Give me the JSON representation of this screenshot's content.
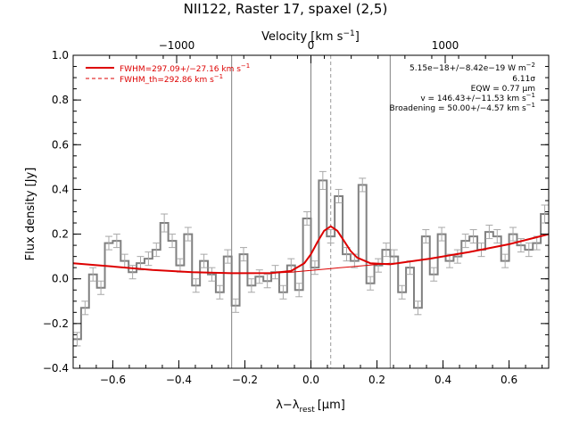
{
  "chart_data": {
    "type": "line",
    "title": "NII122, Raster 17, spaxel (2,5)",
    "xlabel": "λ−λ",
    "xlabel_sub": "rest",
    "xlabel_unit": "[μm]",
    "ylabel": "Flux density [Jy]",
    "top_axis_label": "Velocity [km s",
    "top_axis_sup": "−1",
    "top_axis_close": "]",
    "xlim": [
      -0.72,
      0.72
    ],
    "ylim": [
      -0.4,
      1.0
    ],
    "x_ticks": [
      -0.6,
      -0.4,
      -0.2,
      0.0,
      0.2,
      0.4,
      0.6
    ],
    "x_tick_labels": [
      "−0.6",
      "−0.4",
      "−0.2",
      "0.0",
      "0.2",
      "0.4",
      "0.6"
    ],
    "y_ticks": [
      -0.4,
      -0.2,
      0.0,
      0.2,
      0.4,
      0.6,
      0.8,
      1.0
    ],
    "y_tick_labels": [
      "−0.4",
      "−0.2",
      "0.0",
      "0.2",
      "0.4",
      "0.6",
      "0.8",
      "1.0"
    ],
    "top_ticks_velocity": [
      -1000,
      0,
      1000
    ],
    "top_tick_labels": [
      "−1000",
      "0",
      "1000"
    ],
    "line_rest_um": 121.9,
    "vertical_lines": {
      "solid": [
        -0.24,
        0.0,
        0.24
      ],
      "dashed": [
        0.06
      ]
    },
    "legend": [
      {
        "label": "FWHM=297.09+/−27.16 km s",
        "sup": "−1",
        "style": "solid",
        "color": "#dd0000"
      },
      {
        "label": "FWHM_th=292.86 km s",
        "sup": "−1",
        "style": "dashed",
        "color": "#dd0000"
      }
    ],
    "annotations": [
      {
        "text": "5.15e−18+/−8.42e−19 W m",
        "sup": "−2"
      },
      {
        "text": "6.11σ",
        "sup": ""
      },
      {
        "text": "EQW = 0.77 μm",
        "sup": ""
      },
      {
        "text": "v = 146.43+/−11.53 km s",
        "sup": "−1"
      },
      {
        "text": "Broadening = 50.00+/−4.57 km s",
        "sup": "−1"
      }
    ],
    "colors": {
      "data": "#808080",
      "error": "#a8a8a8",
      "fit": "#dd0000",
      "vlines": "#808080"
    },
    "series": [
      {
        "name": "",
        "style": "histogram",
        "x_start": -0.72,
        "bin_width": 0.024,
        "values": [
          -0.27,
          -0.13,
          0.02,
          -0.04,
          0.16,
          0.17,
          0.08,
          0.03,
          0.07,
          0.09,
          0.13,
          0.25,
          0.17,
          0.06,
          0.2,
          -0.03,
          0.08,
          0.02,
          -0.06,
          0.1,
          -0.12,
          0.11,
          -0.03,
          0.01,
          -0.01,
          0.03,
          -0.06,
          0.06,
          -0.05,
          0.27,
          0.05,
          0.44,
          0.19,
          0.37,
          0.11,
          0.08,
          0.42,
          -0.02,
          0.06,
          0.13,
          0.1,
          -0.06,
          0.05,
          -0.13,
          0.19,
          0.02,
          0.2,
          0.08,
          0.1,
          0.17,
          0.19,
          0.13,
          0.21,
          0.19,
          0.08,
          0.2,
          0.15,
          0.13,
          0.16,
          0.29
        ],
        "errors": [
          0.03,
          0.03,
          0.03,
          0.03,
          0.03,
          0.03,
          0.03,
          0.03,
          0.03,
          0.03,
          0.03,
          0.04,
          0.03,
          0.03,
          0.03,
          0.03,
          0.03,
          0.03,
          0.03,
          0.03,
          0.03,
          0.03,
          0.03,
          0.03,
          0.03,
          0.03,
          0.03,
          0.03,
          0.03,
          0.03,
          0.03,
          0.04,
          0.03,
          0.03,
          0.03,
          0.03,
          0.03,
          0.03,
          0.03,
          0.03,
          0.03,
          0.03,
          0.03,
          0.03,
          0.03,
          0.03,
          0.03,
          0.03,
          0.03,
          0.03,
          0.03,
          0.03,
          0.03,
          0.03,
          0.03,
          0.03,
          0.03,
          0.03,
          0.03,
          0.04
        ]
      },
      {
        "name": "",
        "style": "fit-total",
        "x": [
          -0.72,
          -0.6,
          -0.48,
          -0.36,
          -0.24,
          -0.12,
          -0.06,
          -0.02,
          0.0,
          0.02,
          0.04,
          0.06,
          0.08,
          0.1,
          0.12,
          0.14,
          0.18,
          0.24,
          0.36,
          0.48,
          0.6,
          0.72
        ],
        "values": [
          0.07,
          0.055,
          0.04,
          0.03,
          0.025,
          0.026,
          0.035,
          0.07,
          0.11,
          0.165,
          0.215,
          0.235,
          0.215,
          0.17,
          0.125,
          0.095,
          0.07,
          0.065,
          0.09,
          0.12,
          0.155,
          0.2
        ]
      },
      {
        "name": "",
        "style": "fit-continuum",
        "x": [
          -0.12,
          -0.06,
          0.0,
          0.06,
          0.12,
          0.18,
          0.24
        ],
        "values": [
          0.026,
          0.03,
          0.038,
          0.046,
          0.054,
          0.062,
          0.07
        ]
      }
    ]
  }
}
